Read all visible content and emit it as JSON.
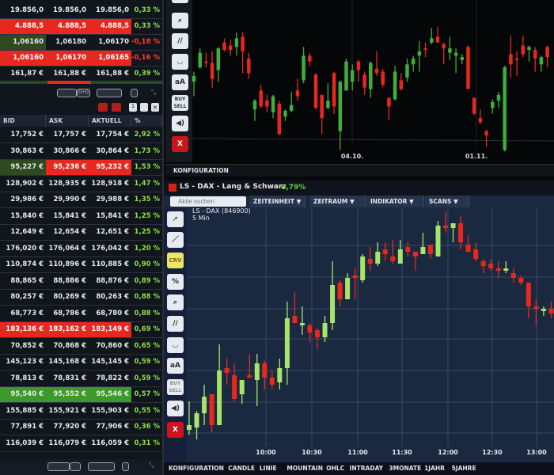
{
  "quotes_top": [
    {
      "bid": "19.856,0",
      "ask": "19.856,0",
      "last": "19.856,0",
      "pct": "0,33 %",
      "hl": []
    },
    {
      "bid": "4.888,5",
      "ask": "4.888,5",
      "last": "4.888,5",
      "pct": "0,33 %",
      "hl": [
        "red",
        "red",
        "red"
      ]
    },
    {
      "bid": "1,06160",
      "ask": "1,06180",
      "last": "1,06170",
      "pct": "-0,18 %",
      "hl": [
        "dkgreen",
        "",
        ""
      ],
      "neg": true
    },
    {
      "bid": "1,06160",
      "ask": "1,06170",
      "last": "1,06165",
      "pct": "-0,16 %",
      "hl": [
        "red",
        "red",
        "red"
      ],
      "neg": true
    },
    {
      "bid": "161,87 €",
      "ask": "161,88 €",
      "last": "161,88 €",
      "pct": "0,39 %",
      "hl": []
    }
  ],
  "table": {
    "headers": [
      "BID",
      "ASK",
      "AKTUELL",
      "%"
    ],
    "rows": [
      {
        "bid": "17,752 €",
        "ask": "17,757 €",
        "last": "17,754 €",
        "pct": "2,92 %",
        "hl": []
      },
      {
        "bid": "30,863 €",
        "ask": "30,866 €",
        "last": "30,864 €",
        "pct": "1,73 %",
        "hl": []
      },
      {
        "bid": "95,227 €",
        "ask": "95,236 €",
        "last": "95,232 €",
        "pct": "1,53 %",
        "hl": [
          "dkgreen",
          "red",
          "red"
        ]
      },
      {
        "bid": "128,902 €",
        "ask": "128,935 €",
        "last": "128,918 €",
        "pct": "1,47 %",
        "hl": []
      },
      {
        "bid": "29,986 €",
        "ask": "29,990 €",
        "last": "29,988 €",
        "pct": "1,35 %",
        "hl": []
      },
      {
        "bid": "15,840 €",
        "ask": "15,841 €",
        "last": "15,841 €",
        "pct": "1,25 %",
        "hl": []
      },
      {
        "bid": "12,649 €",
        "ask": "12,654 €",
        "last": "12,651 €",
        "pct": "1,25 %",
        "hl": []
      },
      {
        "bid": "176,020 €",
        "ask": "176,064 €",
        "last": "176,042 €",
        "pct": "1,20 %",
        "hl": []
      },
      {
        "bid": "110,874 €",
        "ask": "110,896 €",
        "last": "110,885 €",
        "pct": "0,90 %",
        "hl": []
      },
      {
        "bid": "88,865 €",
        "ask": "88,886 €",
        "last": "88,876 €",
        "pct": "0,89 %",
        "hl": []
      },
      {
        "bid": "80,257 €",
        "ask": "80,269 €",
        "last": "80,263 €",
        "pct": "0,88 %",
        "hl": []
      },
      {
        "bid": "68,773 €",
        "ask": "68,786 €",
        "last": "68,780 €",
        "pct": "0,88 %",
        "hl": []
      },
      {
        "bid": "183,136 €",
        "ask": "183,162 €",
        "last": "183,149 €",
        "pct": "0,69 %",
        "hl": [
          "red",
          "red",
          "red"
        ]
      },
      {
        "bid": "70,852 €",
        "ask": "70,868 €",
        "last": "70,860 €",
        "pct": "0,65 %",
        "hl": []
      },
      {
        "bid": "145,123 €",
        "ask": "145,168 €",
        "last": "145,145 €",
        "pct": "0,59 %",
        "hl": []
      },
      {
        "bid": "78,813 €",
        "ask": "78,831 €",
        "last": "78,822 €",
        "pct": "0,59 %",
        "hl": []
      },
      {
        "bid": "95,540 €",
        "ask": "95,552 €",
        "last": "95,546 €",
        "pct": "0,57 %",
        "hl": [
          "green",
          "green",
          "green"
        ]
      },
      {
        "bid": "155,885 €",
        "ask": "155,921 €",
        "last": "155,903 €",
        "pct": "0,55 %",
        "hl": []
      },
      {
        "bid": "77,891 €",
        "ask": "77,920 €",
        "last": "77,906 €",
        "pct": "0,36 %",
        "hl": []
      },
      {
        "bid": "116,039 €",
        "ask": "116,079 €",
        "last": "116,059 €",
        "pct": "0,31 %",
        "hl": []
      }
    ]
  },
  "top_chart": {
    "toolbar": [
      "search-icon",
      "parallel-lines-icon",
      "curve-icon",
      "aA",
      "BUY SELL",
      "speaker-icon",
      "X"
    ],
    "footer": "KONFIGURATION"
  },
  "main_chart": {
    "title": "LS - DAX - Lang & Schwarz",
    "change": "0,79%",
    "search_placeholder": "Aktie suchen",
    "dropdowns": [
      "ZEITEINHEIT",
      "ZEITRAUM",
      "INDIKATOR",
      "SCANS"
    ],
    "instrument": "LS - DAX (846900)",
    "interval": "5 Min",
    "tools": [
      "cursor-plus-icon",
      "line-icon",
      "CRV",
      "%",
      "search-icon",
      "parallel-lines-icon",
      "curve-icon",
      "aA",
      "BUY SELL",
      "speaker-icon",
      "X"
    ],
    "bottom_menu": [
      "KONFIGURATION",
      "CANDLE",
      "LINIE",
      "MOUNTAIN",
      "OHLC",
      "INTRADAY",
      "3MONATE",
      "1JAHR",
      "5JAHRE"
    ]
  },
  "colors": {
    "up_top": "#3fae3a",
    "down": "#e8281e",
    "up_main": "#a6e46a",
    "chart_bg": "#1a2840",
    "positive": "#8fe04a"
  },
  "chart_data": [
    {
      "type": "candlestick",
      "note_scale": "relative 0-100 (no price axis shown)",
      "x_tick_labels": [
        "04.10.",
        "01.11."
      ],
      "ohlc": [
        [
          48,
          55,
          38,
          52
        ],
        [
          58,
          71,
          57,
          68
        ],
        [
          62,
          68,
          58,
          61
        ],
        [
          61,
          69,
          44,
          50
        ],
        [
          56,
          72,
          48,
          71
        ],
        [
          75,
          78,
          69,
          70
        ],
        [
          73,
          77,
          66,
          70
        ],
        [
          72,
          82,
          66,
          78
        ],
        [
          79,
          82,
          54,
          69
        ],
        [
          64,
          68,
          50,
          54
        ],
        [
          29,
          36,
          21,
          35
        ],
        [
          42,
          46,
          30,
          31
        ],
        [
          35,
          39,
          27,
          31
        ],
        [
          27,
          39,
          23,
          38
        ],
        [
          33,
          35,
          11,
          12
        ],
        [
          24,
          29,
          21,
          28
        ],
        [
          28,
          41,
          27,
          32
        ],
        [
          42,
          50,
          35,
          38
        ],
        [
          49,
          72,
          47,
          66
        ],
        [
          66,
          68,
          59,
          62
        ],
        [
          53,
          54,
          29,
          30
        ],
        [
          39,
          39,
          12,
          23
        ],
        [
          30,
          47,
          29,
          35
        ],
        [
          54,
          55,
          26,
          31
        ],
        [
          14,
          49,
          1,
          48
        ],
        [
          42,
          64,
          42,
          62
        ],
        [
          48,
          60,
          42,
          56
        ],
        [
          62,
          63,
          48,
          56
        ],
        [
          53,
          55,
          39,
          44
        ],
        [
          43,
          62,
          37,
          61
        ],
        [
          57,
          69,
          52,
          54
        ],
        [
          55,
          57,
          44,
          46
        ],
        [
          37,
          37,
          22,
          31
        ],
        [
          36,
          59,
          35,
          55
        ],
        [
          49,
          54,
          42,
          43
        ],
        [
          51,
          64,
          48,
          60
        ],
        [
          60,
          66,
          55,
          64
        ],
        [
          66,
          76,
          55,
          69
        ],
        [
          71,
          75,
          65,
          70
        ],
        [
          75,
          85,
          74,
          78
        ],
        [
          79,
          86,
          75,
          75
        ],
        [
          74,
          75,
          60,
          71
        ],
        [
          68,
          79,
          63,
          71
        ],
        [
          66,
          71,
          54,
          68
        ],
        [
          63,
          67,
          60,
          65
        ],
        [
          72,
          73,
          43,
          43
        ],
        [
          37,
          37,
          25,
          26
        ],
        [
          23,
          29,
          19,
          20
        ],
        [
          14,
          15,
          3,
          11
        ],
        [
          30,
          36,
          26,
          34
        ],
        [
          35,
          41,
          30,
          39
        ],
        [
          1,
          59,
          0,
          58
        ],
        [
          67,
          80,
          51,
          60
        ],
        [
          64,
          69,
          52,
          63
        ],
        [
          73,
          80,
          65,
          67
        ],
        [
          70,
          73,
          62,
          72
        ],
        [
          70,
          72,
          55,
          64
        ],
        [
          60,
          66,
          55,
          65
        ],
        [
          72,
          73,
          58,
          65
        ]
      ]
    },
    {
      "type": "candlestick",
      "title": "LS - DAX (846900)",
      "note_scale": "relative 0-100 (no price axis shown)",
      "x_tick_labels": [
        "10:00",
        "10:30",
        "11:00",
        "11:30",
        "12:00",
        "12:30",
        "13:00"
      ],
      "ohlc": [
        [
          4,
          16,
          2,
          6
        ],
        [
          5,
          12,
          0,
          11
        ],
        [
          11,
          23,
          6,
          18
        ],
        [
          19,
          19,
          3,
          6
        ],
        [
          6,
          40,
          6,
          29
        ],
        [
          30,
          34,
          23,
          28
        ],
        [
          27,
          32,
          16,
          17
        ],
        [
          19,
          25,
          15,
          25
        ],
        [
          27,
          36,
          26,
          26
        ],
        [
          25,
          36,
          14,
          32
        ],
        [
          32,
          33,
          21,
          26
        ],
        [
          26,
          29,
          21,
          23
        ],
        [
          24,
          34,
          21,
          30
        ],
        [
          30,
          58,
          23,
          51
        ],
        [
          52,
          62,
          49,
          49
        ],
        [
          48,
          56,
          44,
          49
        ],
        [
          48,
          49,
          41,
          45
        ],
        [
          46,
          47,
          38,
          43
        ],
        [
          43,
          52,
          41,
          49
        ],
        [
          49,
          75,
          46,
          65
        ],
        [
          66,
          67,
          56,
          59
        ],
        [
          59,
          70,
          59,
          68
        ],
        [
          69,
          72,
          59,
          68
        ],
        [
          67,
          78,
          66,
          77
        ],
        [
          76,
          81,
          71,
          74
        ],
        [
          74,
          83,
          73,
          79
        ],
        [
          80,
          83,
          75,
          78
        ],
        [
          77,
          84,
          74,
          75
        ],
        [
          74,
          84,
          74,
          80
        ],
        [
          81,
          83,
          77,
          79
        ],
        [
          79,
          79,
          71,
          77
        ],
        [
          78,
          87,
          78,
          81
        ],
        [
          82,
          82,
          76,
          78
        ],
        [
          77,
          92,
          77,
          90
        ],
        [
          90,
          96,
          87,
          89
        ],
        [
          89,
          91,
          83,
          91
        ],
        [
          91,
          94,
          80,
          83
        ],
        [
          82,
          86,
          79,
          79
        ],
        [
          80,
          83,
          75,
          76
        ],
        [
          75,
          76,
          70,
          73
        ],
        [
          74,
          76,
          71,
          72
        ],
        [
          72,
          75,
          68,
          71
        ],
        [
          71,
          75,
          70,
          72
        ],
        [
          70,
          72,
          66,
          68
        ],
        [
          68,
          69,
          65,
          66
        ],
        [
          66,
          66,
          51,
          56
        ],
        [
          56,
          59,
          48,
          55
        ],
        [
          54,
          56,
          52,
          55
        ],
        [
          55,
          58,
          51,
          53
        ]
      ]
    }
  ]
}
